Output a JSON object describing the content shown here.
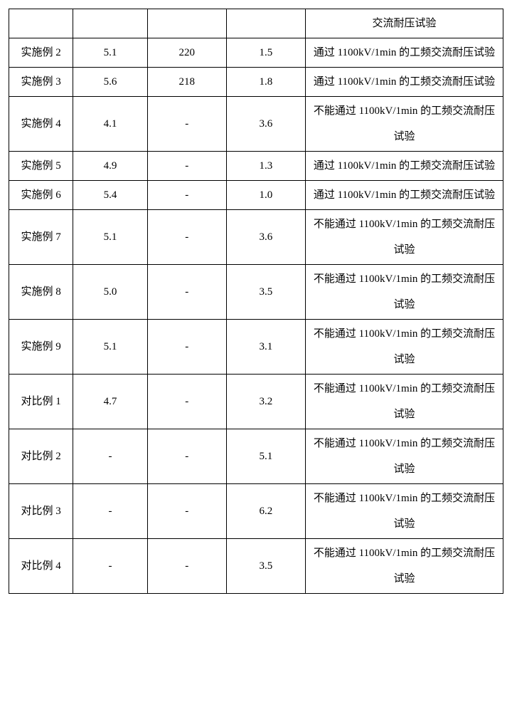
{
  "table": {
    "columns": [
      "",
      "",
      "",
      "",
      ""
    ],
    "col_widths_pct": [
      13,
      15,
      16,
      16,
      40
    ],
    "border_color": "#000000",
    "background_color": "#ffffff",
    "text_color": "#000000",
    "font_size_pt": 11,
    "rows": [
      {
        "c1": "",
        "c2": "",
        "c3": "",
        "c4": "",
        "c5": "交流耐压试验"
      },
      {
        "c1": "实施例 2",
        "c2": "5.1",
        "c3": "220",
        "c4": "1.5",
        "c5": "通过 1100kV/1min 的工频交流耐压试验"
      },
      {
        "c1": "实施例 3",
        "c2": "5.6",
        "c3": "218",
        "c4": "1.8",
        "c5": "通过 1100kV/1min 的工频交流耐压试验"
      },
      {
        "c1": "实施例 4",
        "c2": "4.1",
        "c3": "-",
        "c4": "3.6",
        "c5": "不能通过 1100kV/1min 的工频交流耐压试验"
      },
      {
        "c1": "实施例 5",
        "c2": "4.9",
        "c3": "-",
        "c4": "1.3",
        "c5": "通过 1100kV/1min 的工频交流耐压试验"
      },
      {
        "c1": "实施例 6",
        "c2": "5.4",
        "c3": "-",
        "c4": "1.0",
        "c5": "通过 1100kV/1min 的工频交流耐压试验"
      },
      {
        "c1": "实施例 7",
        "c2": "5.1",
        "c3": "-",
        "c4": "3.6",
        "c5": "不能通过 1100kV/1min 的工频交流耐压试验"
      },
      {
        "c1": "实施例 8",
        "c2": "5.0",
        "c3": "-",
        "c4": "3.5",
        "c5": "不能通过 1100kV/1min 的工频交流耐压试验"
      },
      {
        "c1": "实施例 9",
        "c2": "5.1",
        "c3": "-",
        "c4": "3.1",
        "c5": "不能通过 1100kV/1min 的工频交流耐压试验"
      },
      {
        "c1": "对比例 1",
        "c2": "4.7",
        "c3": "-",
        "c4": "3.2",
        "c5": "不能通过 1100kV/1min 的工频交流耐压试验"
      },
      {
        "c1": "对比例 2",
        "c2": "-",
        "c3": "-",
        "c4": "5.1",
        "c5": "不能通过 1100kV/1min 的工频交流耐压试验"
      },
      {
        "c1": "对比例 3",
        "c2": "-",
        "c3": "-",
        "c4": "6.2",
        "c5": "不能通过 1100kV/1min 的工频交流耐压试验"
      },
      {
        "c1": "对比例 4",
        "c2": "-",
        "c3": "-",
        "c4": "3.5",
        "c5": "不能通过 1100kV/1min 的工频交流耐压试验"
      }
    ]
  }
}
